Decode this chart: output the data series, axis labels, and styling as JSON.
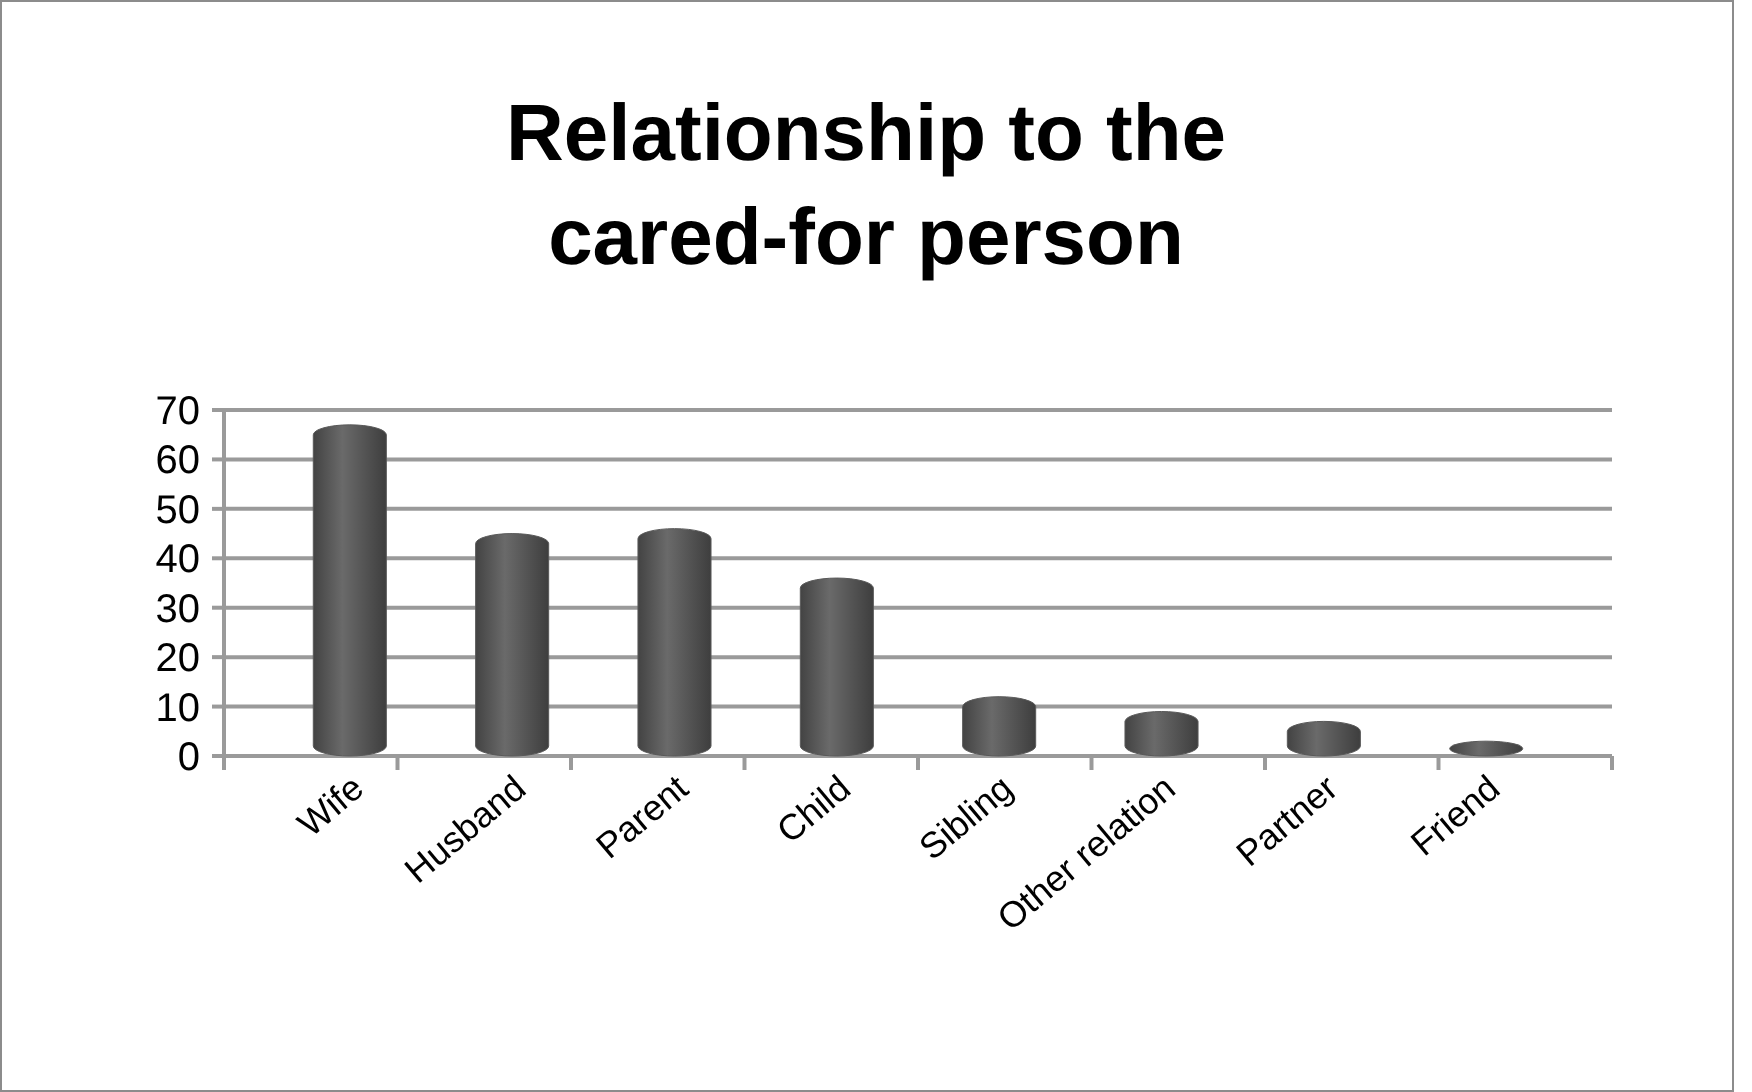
{
  "chart_data": {
    "type": "bar",
    "title": "Relationship to the cared-for person",
    "categories": [
      "Wife",
      "Husband",
      "Parent",
      "Child",
      "Sibling",
      "Other relation",
      "Partner",
      "Friend"
    ],
    "values": [
      67,
      45,
      46,
      36,
      12,
      9,
      7,
      3
    ],
    "color": "#595959",
    "ylim": [
      0,
      70
    ],
    "yticks": [
      0,
      10,
      20,
      30,
      40,
      50,
      60,
      70
    ],
    "grid": "y"
  }
}
